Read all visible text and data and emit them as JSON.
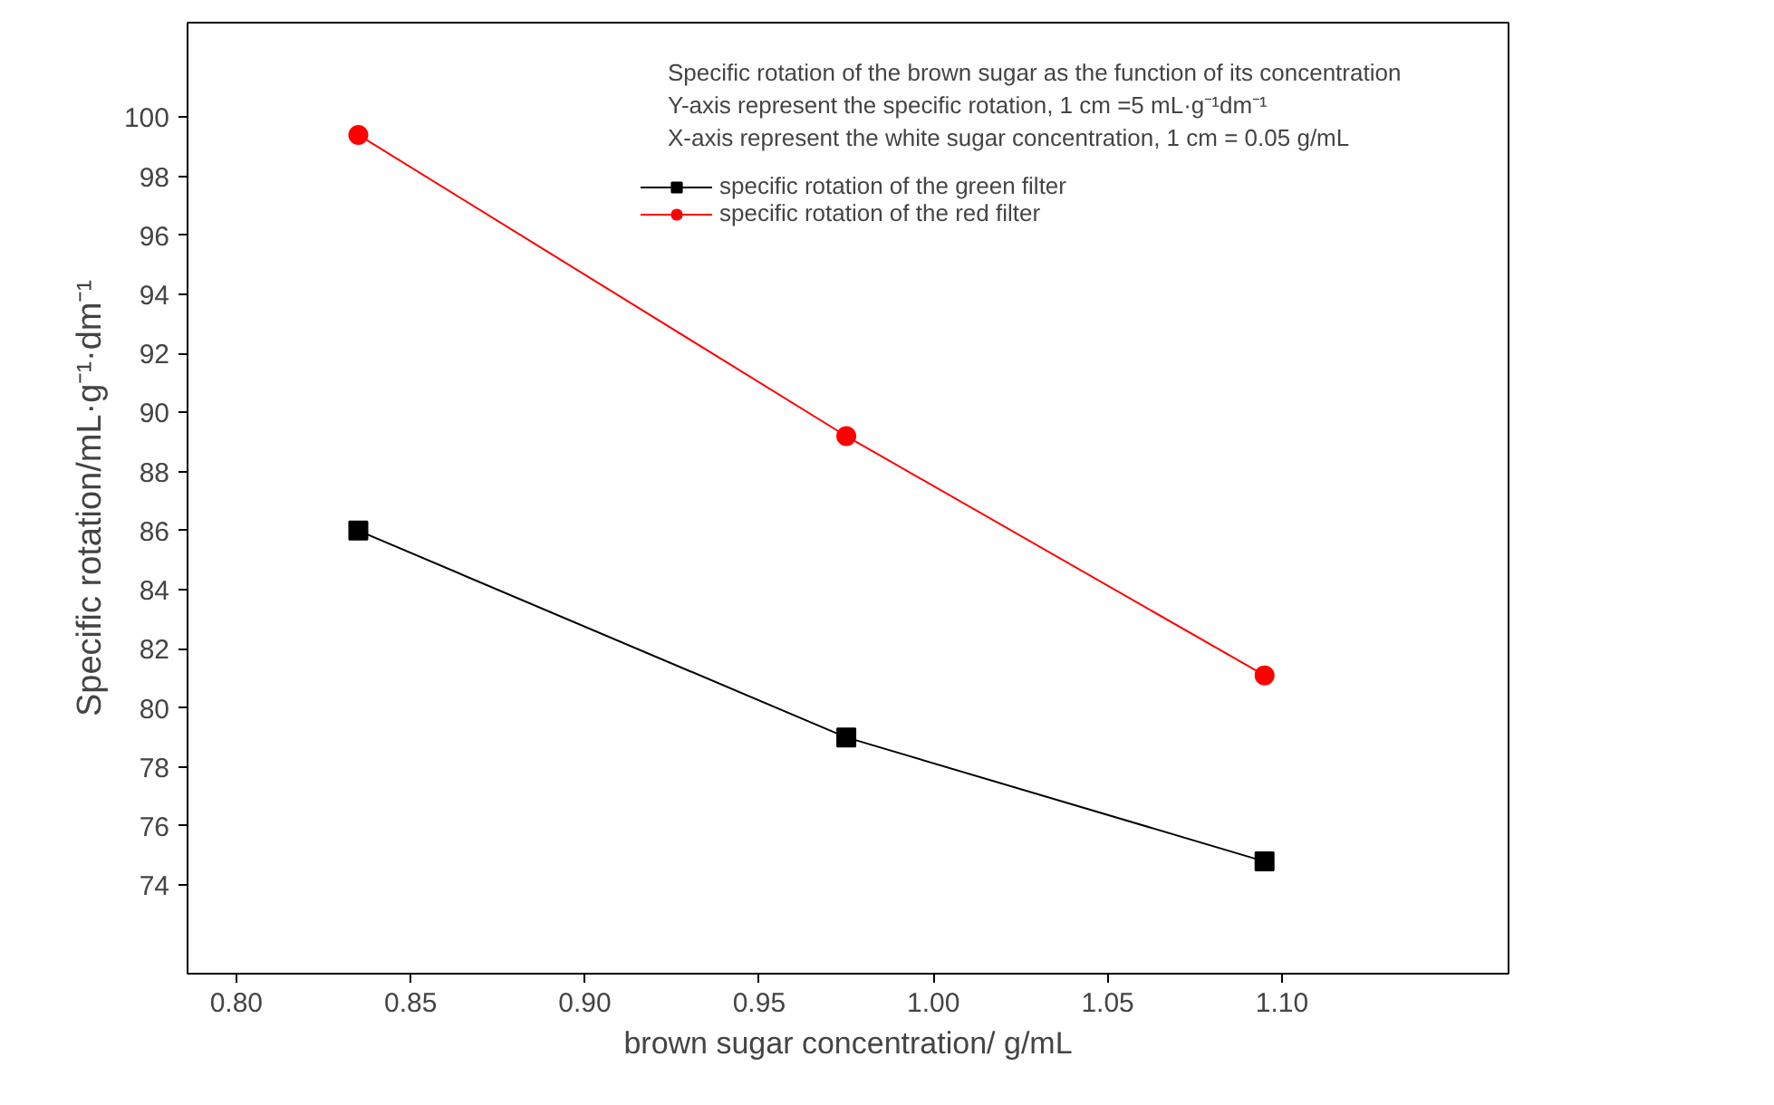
{
  "chart_data": {
    "type": "line",
    "xlabel": "brown sugar concentration/ g/mL",
    "ylabel": "Specific rotation/mL·g⁻¹·dm⁻¹",
    "annotations": [
      "Specific rotation of the brown sugar as the function of its concentration",
      "Y-axis represent the specific rotation, 1 cm =5 mL·g⁻¹dm⁻¹",
      "X-axis represent the white sugar concentration, 1 cm = 0.05 g/mL"
    ],
    "x": [
      0.835,
      0.975,
      1.095
    ],
    "series": [
      {
        "name": "specific rotation of the green filter",
        "color": "#000000",
        "marker": "square",
        "values": [
          86.0,
          79.0,
          74.8
        ]
      },
      {
        "name": "specific rotation of the red filter",
        "color": "#ff0000",
        "marker": "circle",
        "values": [
          99.4,
          89.2,
          81.1
        ]
      }
    ],
    "xlim": [
      0.786,
      1.165
    ],
    "ylim": [
      71,
      103.2
    ],
    "xticks": [
      {
        "value": 0.8,
        "label": "0.80"
      },
      {
        "value": 0.85,
        "label": "0.85"
      },
      {
        "value": 0.9,
        "label": "0.90"
      },
      {
        "value": 0.95,
        "label": "0.95"
      },
      {
        "value": 1.0,
        "label": "1.00"
      },
      {
        "value": 1.05,
        "label": "1.05"
      },
      {
        "value": 1.1,
        "label": "1.10"
      }
    ],
    "yticks": [
      74,
      76,
      78,
      80,
      82,
      84,
      86,
      88,
      90,
      92,
      94,
      96,
      98,
      100
    ],
    "grid": false,
    "legend": "top right",
    "line_style": "solid"
  }
}
